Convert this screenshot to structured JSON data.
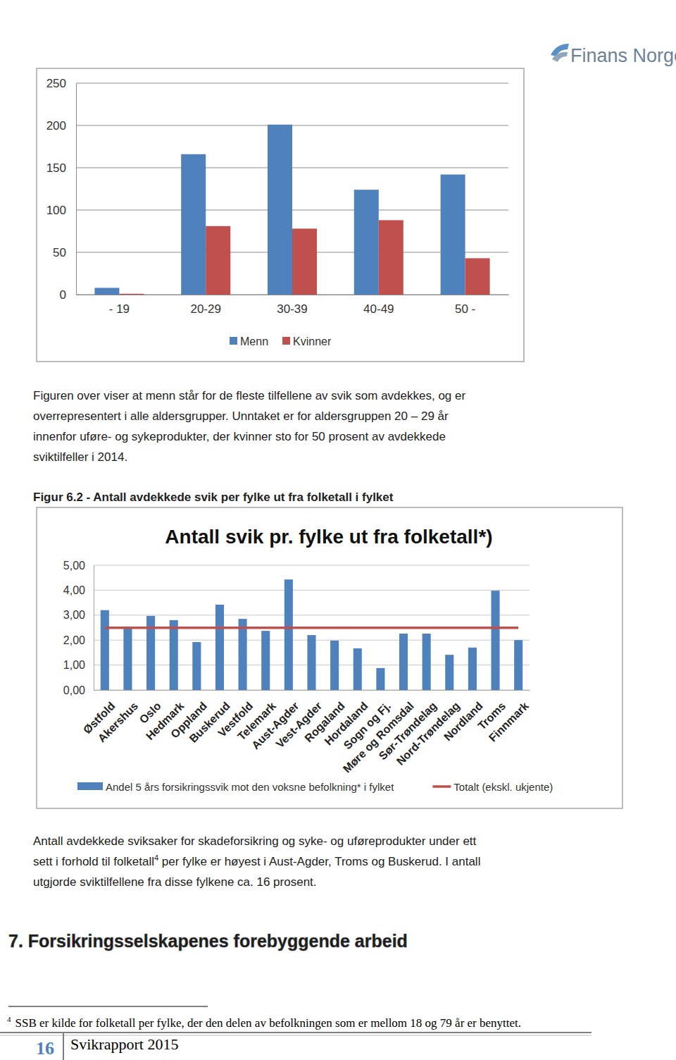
{
  "document": {
    "logo": "Finans Norge",
    "paragraph_1": [
      "Figuren over viser at menn står for de fleste tilfellene av svik som avdekkes, og er",
      "overrepresentert i alle aldersgrupper. Unntaket er for aldersgruppen 20 – 29 år",
      "innenfor uføre- og sykeprodukter, der kvinner sto for 50 prosent av avdekkede",
      "sviktilfeller i 2014."
    ],
    "figure_caption": "Figur 6.2 - Antall avdekkede svik per fylke ut fra folketall i fylket",
    "paragraph_2": [
      [
        {
          "text": "Antall avdekkede sviksaker for skadeforsikring og syke- og uføreprodukter under ett"
        }
      ],
      [
        {
          "text": "sett i forhold til folketall"
        },
        {
          "text": "4",
          "sup": true
        },
        {
          "text": " per fylke er høyest i Aust-Agder, Troms og Buskerud. I antall"
        }
      ],
      [
        {
          "text": "utgjorde sviktilfellene fra disse fylkene ca. 16 prosent."
        }
      ]
    ],
    "heading": "7. Forsikringsselskapenes forebyggende arbeid",
    "footnote": {
      "marker": "4",
      "text": "SSB er kilde for folketall per fylke, der den delen av befolkningen som er mellom 18 og 79 år er benyttet."
    },
    "footer": {
      "page": 16,
      "title": "Svikrapport 2015"
    }
  },
  "chart_data": [
    {
      "type": "bar",
      "categories": [
        "- 19",
        "20-29",
        "30-39",
        "40-49",
        "50 -"
      ],
      "series": [
        {
          "name": "Menn",
          "color": "#4f81bd",
          "values": [
            8,
            166,
            201,
            124,
            142
          ]
        },
        {
          "name": "Kvinner",
          "color": "#c0504d",
          "values": [
            1,
            81,
            78,
            88,
            43
          ]
        }
      ],
      "ylim": [
        0,
        250
      ],
      "yticks": [
        0,
        50,
        100,
        150,
        200,
        250
      ],
      "grid": true,
      "legend": "bottom"
    },
    {
      "type": "bar",
      "title": "Antall svik pr. fylke ut fra folketall*)",
      "categories": [
        "Østfold",
        "Akershus",
        "Oslo",
        "Hedmark",
        "Oppland",
        "Buskerud",
        "Vestfold",
        "Telemark",
        "Aust-Agder",
        "Vest-Agder",
        "Rogaland",
        "Hordaland",
        "Sogn og Fj.",
        "Møre og Romsdal",
        "Sør-Trøndelag",
        "Nord-Trøndelag",
        "Nordland",
        "Troms",
        "Finnmark"
      ],
      "series": [
        {
          "name": "Andel 5 års forsikringssvik mot den voksne befolkning* i fylket",
          "type": "bar",
          "color": "#4f81bd",
          "values": [
            3.2,
            2.46,
            2.97,
            2.8,
            1.92,
            3.42,
            2.85,
            2.37,
            4.43,
            2.2,
            1.98,
            1.67,
            0.88,
            2.26,
            2.26,
            1.41,
            1.7,
            3.98,
            2.0
          ]
        },
        {
          "name": "Totalt (ekskl. ukjente)",
          "type": "line",
          "color": "#c0504d",
          "values": [
            2.49,
            2.49,
            2.49,
            2.49,
            2.49,
            2.49,
            2.49,
            2.49,
            2.49,
            2.49,
            2.49,
            2.49,
            2.49,
            2.49,
            2.49,
            2.49,
            2.49,
            2.49,
            2.49
          ]
        }
      ],
      "ylim": [
        0,
        5
      ],
      "yticks": [
        {
          "value": 0,
          "label": "0,00"
        },
        {
          "value": 1,
          "label": "1,00"
        },
        {
          "value": 2,
          "label": "2,00"
        },
        {
          "value": 3,
          "label": "3,00"
        },
        {
          "value": 4,
          "label": "4,00"
        },
        {
          "value": 5,
          "label": "5,00"
        }
      ],
      "grid": true,
      "legend": "bottom"
    }
  ]
}
